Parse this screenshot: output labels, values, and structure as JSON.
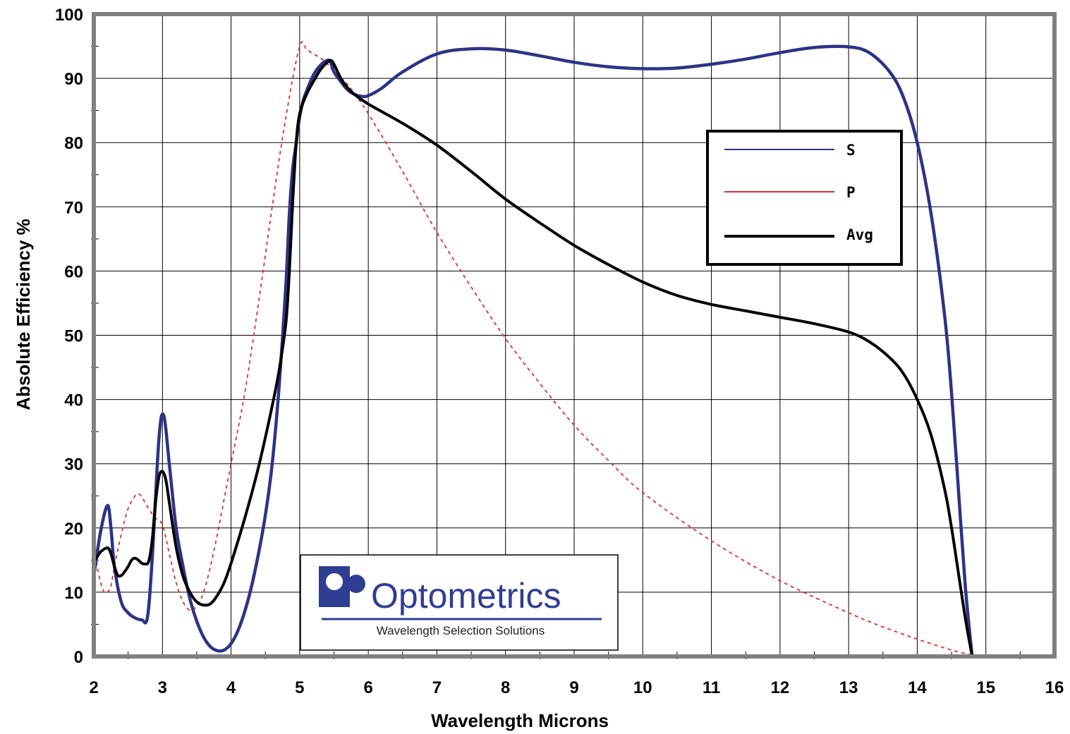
{
  "chart_data": {
    "type": "line",
    "title": "",
    "xlabel": "Wavelength Microns",
    "ylabel": "Absolute Efficiency %",
    "xlim": [
      2,
      16
    ],
    "ylim": [
      0,
      100
    ],
    "grid": true,
    "xticks": [
      2,
      3,
      4,
      5,
      6,
      7,
      8,
      9,
      10,
      11,
      12,
      13,
      14,
      15,
      16
    ],
    "yticks": [
      0,
      10,
      20,
      30,
      40,
      50,
      60,
      70,
      80,
      90,
      100
    ],
    "legend_position": "top-right",
    "series": [
      {
        "name": "S",
        "color": "#2b3486",
        "style": "solid",
        "x": [
          2.0,
          2.1,
          2.2,
          2.25,
          2.3,
          2.4,
          2.5,
          2.6,
          2.7,
          2.78,
          2.85,
          2.95,
          3.02,
          3.1,
          3.2,
          3.3,
          3.4,
          3.5,
          3.6,
          3.7,
          3.8,
          3.9,
          4.0,
          4.1,
          4.2,
          4.3,
          4.4,
          4.5,
          4.6,
          4.7,
          4.8,
          4.85,
          4.9,
          4.95,
          5.0,
          5.05,
          5.1,
          5.2,
          5.3,
          5.4,
          5.45,
          5.5,
          5.6,
          5.7,
          5.8,
          5.9,
          6.0,
          6.2,
          6.5,
          7.0,
          7.5,
          8.0,
          8.5,
          9.0,
          9.5,
          10.0,
          10.5,
          11.0,
          11.5,
          12.0,
          12.5,
          13.0,
          13.3,
          13.6,
          13.8,
          14.0,
          14.2,
          14.4,
          14.5,
          14.6,
          14.7,
          14.8
        ],
        "values": [
          12.5,
          19.5,
          23.5,
          20.0,
          14.0,
          8.5,
          6.8,
          6.0,
          5.7,
          6.0,
          15.0,
          34.0,
          37.5,
          30.0,
          20.0,
          14.0,
          9.0,
          5.5,
          3.0,
          1.5,
          0.9,
          1.0,
          2.0,
          4.0,
          7.0,
          11.0,
          16.0,
          22.0,
          30.0,
          42.0,
          58.0,
          69.0,
          76.0,
          80.0,
          84.0,
          86.5,
          88.0,
          90.5,
          92.0,
          92.8,
          92.5,
          91.0,
          89.5,
          88.2,
          87.5,
          87.2,
          87.3,
          88.5,
          91.0,
          93.8,
          94.6,
          94.4,
          93.5,
          92.5,
          91.8,
          91.5,
          91.6,
          92.2,
          93.0,
          94.0,
          94.8,
          94.9,
          94.0,
          91.0,
          87.0,
          80.0,
          69.0,
          53.0,
          41.0,
          26.0,
          11.0,
          0.0
        ]
      },
      {
        "name": "P",
        "color": "#e52b2b",
        "style": "dashed",
        "x": [
          2.0,
          2.05,
          2.1,
          2.15,
          2.2,
          2.25,
          2.3,
          2.4,
          2.5,
          2.6,
          2.65,
          2.7,
          2.8,
          2.9,
          3.0,
          3.1,
          3.2,
          3.3,
          3.4,
          3.5,
          3.6,
          3.7,
          3.8,
          3.9,
          4.0,
          4.2,
          4.4,
          4.6,
          4.8,
          5.0,
          5.1,
          5.2,
          5.3,
          5.4,
          5.5,
          5.7,
          6.0,
          6.5,
          7.0,
          7.5,
          8.0,
          8.5,
          9.0,
          9.5,
          10.0,
          11.0,
          12.0,
          13.0,
          13.5,
          14.0,
          14.5,
          14.8
        ],
        "values": [
          18.0,
          14.0,
          11.5,
          10.0,
          10.0,
          11.0,
          14.0,
          19.0,
          23.0,
          25.0,
          25.3,
          24.8,
          23.0,
          21.5,
          20.5,
          16.0,
          11.5,
          8.5,
          7.2,
          7.8,
          10.0,
          14.0,
          19.0,
          24.5,
          30.0,
          41.0,
          55.0,
          70.0,
          84.0,
          95.0,
          94.5,
          93.8,
          93.2,
          92.3,
          91.0,
          89.0,
          84.5,
          75.5,
          66.0,
          57.5,
          49.5,
          42.5,
          36.0,
          30.5,
          25.5,
          18.0,
          11.8,
          6.8,
          4.6,
          2.7,
          1.0,
          0.2
        ]
      },
      {
        "name": "Avg",
        "color": "#000000",
        "style": "solid",
        "x": [
          2.0,
          2.05,
          2.1,
          2.2,
          2.25,
          2.3,
          2.35,
          2.4,
          2.45,
          2.5,
          2.55,
          2.6,
          2.65,
          2.7,
          2.75,
          2.8,
          2.85,
          2.9,
          2.95,
          3.0,
          3.05,
          3.1,
          3.2,
          3.3,
          3.4,
          3.5,
          3.6,
          3.7,
          3.8,
          3.9,
          4.0,
          4.2,
          4.4,
          4.6,
          4.7,
          4.8,
          4.85,
          4.9,
          4.95,
          5.0,
          5.1,
          5.2,
          5.3,
          5.4,
          5.45,
          5.5,
          5.6,
          5.7,
          5.8,
          6.0,
          6.5,
          7.0,
          7.5,
          8.0,
          8.5,
          9.0,
          9.5,
          10.0,
          10.5,
          11.0,
          11.5,
          12.0,
          12.5,
          13.0,
          13.3,
          13.6,
          13.8,
          14.0,
          14.2,
          14.4,
          14.5,
          14.6,
          14.7,
          14.8
        ],
        "values": [
          15.0,
          15.5,
          16.3,
          16.9,
          16.0,
          14.0,
          12.6,
          12.6,
          13.2,
          14.0,
          15.0,
          15.3,
          15.0,
          14.5,
          14.4,
          14.8,
          18.0,
          24.0,
          28.0,
          28.8,
          27.5,
          24.0,
          17.0,
          12.5,
          10.0,
          8.5,
          8.0,
          8.2,
          9.5,
          11.5,
          14.5,
          21.5,
          29.5,
          39.0,
          44.5,
          52.0,
          60.0,
          71.0,
          80.0,
          84.5,
          87.5,
          89.5,
          91.3,
          92.5,
          92.8,
          92.2,
          90.0,
          88.5,
          87.5,
          86.0,
          83.0,
          79.6,
          75.5,
          71.2,
          67.5,
          64.0,
          61.0,
          58.3,
          56.2,
          54.8,
          53.8,
          52.8,
          51.8,
          50.5,
          49.0,
          46.5,
          44.0,
          40.0,
          34.5,
          26.0,
          20.0,
          13.0,
          6.0,
          0.0
        ]
      }
    ]
  },
  "logo": {
    "name": "Optometrics",
    "tagline": "Wavelength Selection Solutions"
  }
}
